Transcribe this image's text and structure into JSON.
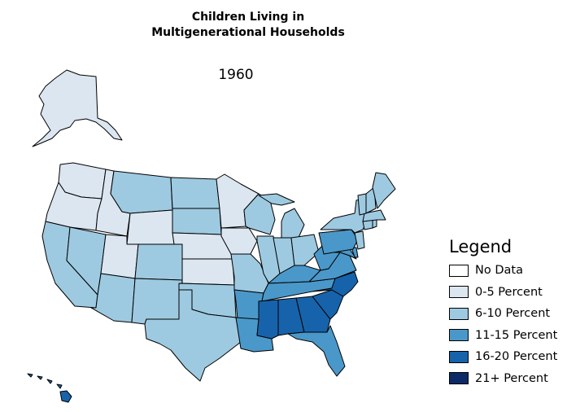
{
  "title": {
    "line1": "Children Living in",
    "line2": "Multigenerational Households"
  },
  "year": "1960",
  "legend": {
    "title": "Legend",
    "items": [
      {
        "label": "No Data",
        "color": "#ffffff"
      },
      {
        "label": "0-5 Percent",
        "color": "#dce6f0"
      },
      {
        "label": "6-10 Percent",
        "color": "#9ecae1"
      },
      {
        "label": "11-15 Percent",
        "color": "#4a98c9"
      },
      {
        "label": "16-20 Percent",
        "color": "#1763ab"
      },
      {
        "label": "21+ Percent",
        "color": "#0d2a68"
      }
    ]
  },
  "states": [
    {
      "name": "Alaska",
      "category": 1
    },
    {
      "name": "Hawaii",
      "category": 4
    },
    {
      "name": "Washington",
      "category": 1
    },
    {
      "name": "Oregon",
      "category": 1
    },
    {
      "name": "California",
      "category": 2
    },
    {
      "name": "Nevada",
      "category": 2
    },
    {
      "name": "Idaho",
      "category": 1
    },
    {
      "name": "Montana",
      "category": 2
    },
    {
      "name": "Wyoming",
      "category": 1
    },
    {
      "name": "Utah",
      "category": 1
    },
    {
      "name": "Arizona",
      "category": 2
    },
    {
      "name": "Colorado",
      "category": 2
    },
    {
      "name": "New Mexico",
      "category": 2
    },
    {
      "name": "North Dakota",
      "category": 2
    },
    {
      "name": "South Dakota",
      "category": 2
    },
    {
      "name": "Nebraska",
      "category": 1
    },
    {
      "name": "Kansas",
      "category": 1
    },
    {
      "name": "Oklahoma",
      "category": 2
    },
    {
      "name": "Texas",
      "category": 2
    },
    {
      "name": "Minnesota",
      "category": 1
    },
    {
      "name": "Iowa",
      "category": 1
    },
    {
      "name": "Missouri",
      "category": 2
    },
    {
      "name": "Arkansas",
      "category": 3
    },
    {
      "name": "Louisiana",
      "category": 3
    },
    {
      "name": "Wisconsin",
      "category": 2
    },
    {
      "name": "Illinois",
      "category": 2
    },
    {
      "name": "Michigan",
      "category": 2
    },
    {
      "name": "Indiana",
      "category": 2
    },
    {
      "name": "Ohio",
      "category": 2
    },
    {
      "name": "Kentucky",
      "category": 3
    },
    {
      "name": "Tennessee",
      "category": 3
    },
    {
      "name": "Mississippi",
      "category": 4
    },
    {
      "name": "Alabama",
      "category": 4
    },
    {
      "name": "Georgia",
      "category": 4
    },
    {
      "name": "Florida",
      "category": 3
    },
    {
      "name": "South Carolina",
      "category": 4
    },
    {
      "name": "North Carolina",
      "category": 4
    },
    {
      "name": "Virginia",
      "category": 3
    },
    {
      "name": "West Virginia",
      "category": 3
    },
    {
      "name": "Maryland",
      "category": 3
    },
    {
      "name": "Delaware",
      "category": 3
    },
    {
      "name": "Pennsylvania",
      "category": 3
    },
    {
      "name": "New Jersey",
      "category": 2
    },
    {
      "name": "New York",
      "category": 2
    },
    {
      "name": "Connecticut",
      "category": 2
    },
    {
      "name": "Rhode Island",
      "category": 2
    },
    {
      "name": "Massachusetts",
      "category": 2
    },
    {
      "name": "Vermont",
      "category": 2
    },
    {
      "name": "New Hampshire",
      "category": 2
    },
    {
      "name": "Maine",
      "category": 2
    }
  ]
}
